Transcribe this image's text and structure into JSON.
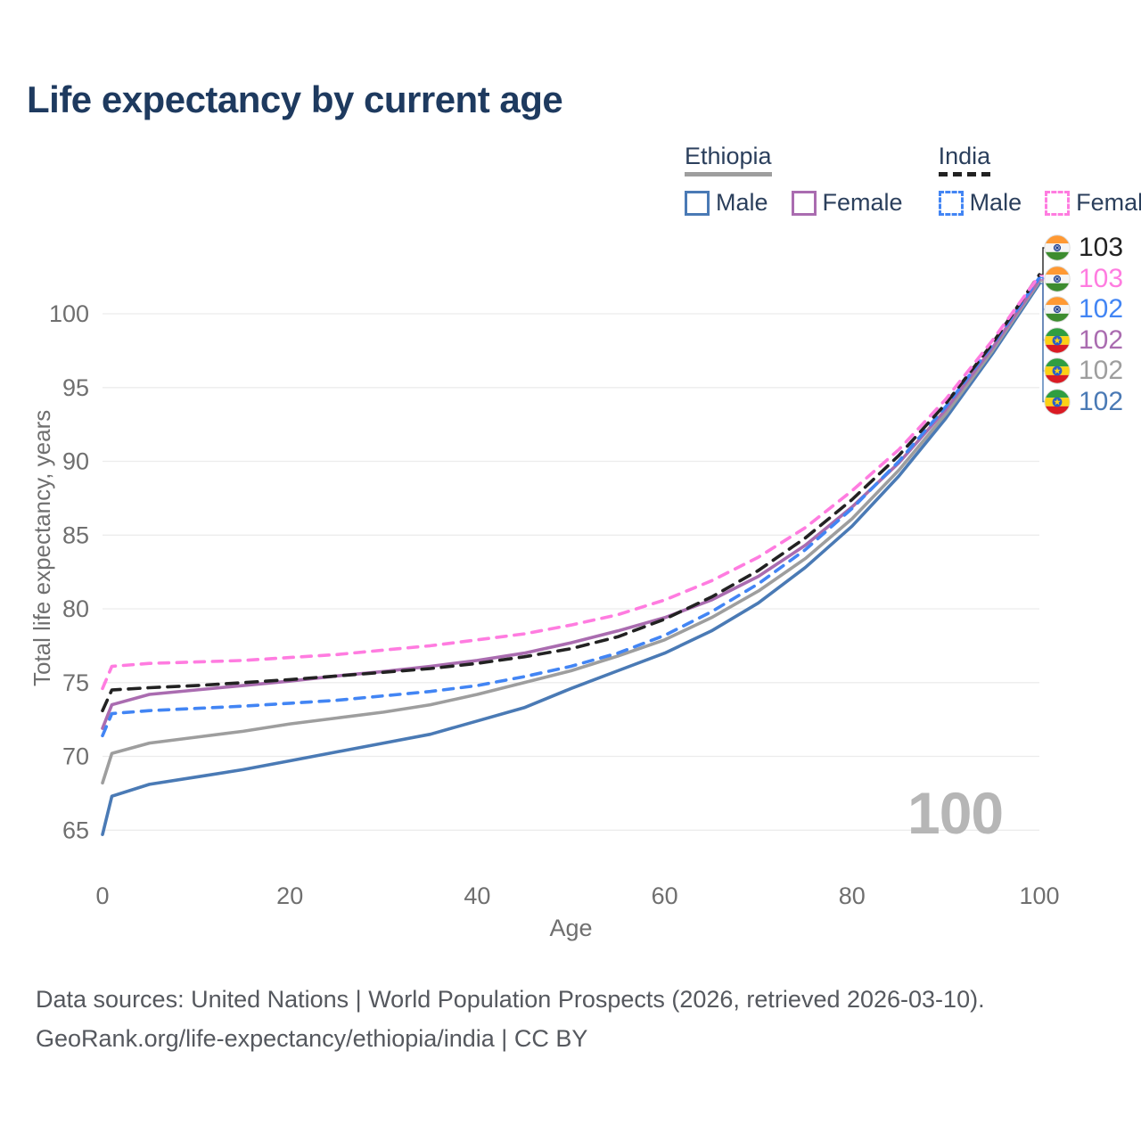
{
  "chart_data": {
    "type": "line",
    "title": "Life expectancy by current age",
    "xlabel": "Age",
    "ylabel": "Total life expectancy, years",
    "watermark": "100",
    "xlim": [
      0,
      100
    ],
    "ylim": [
      65,
      103
    ],
    "xticks": [
      0,
      20,
      40,
      60,
      80,
      100
    ],
    "yticks": [
      65,
      70,
      75,
      80,
      85,
      90,
      95,
      100
    ],
    "grid": "horizontal",
    "x": [
      0,
      1,
      5,
      10,
      15,
      20,
      25,
      30,
      35,
      40,
      45,
      50,
      55,
      60,
      65,
      70,
      75,
      80,
      85,
      90,
      95,
      100
    ],
    "series": [
      {
        "id": "ethiopia-male",
        "country": "Ethiopia",
        "name": "Ethiopia Male",
        "color": "#4a7ab5",
        "linestyle": "solid",
        "values": [
          64.7,
          67.3,
          68.1,
          68.6,
          69.1,
          69.7,
          70.3,
          70.9,
          71.5,
          72.4,
          73.3,
          74.6,
          75.8,
          77.0,
          78.5,
          80.4,
          82.8,
          85.6,
          89.0,
          92.9,
          97.3,
          102.05
        ]
      },
      {
        "id": "ethiopia-total",
        "country": "Ethiopia",
        "name": "Ethiopia Total",
        "color": "#9e9e9e",
        "linestyle": "solid",
        "values": [
          68.2,
          70.2,
          70.9,
          71.3,
          71.7,
          72.2,
          72.6,
          73.0,
          73.5,
          74.2,
          75.0,
          75.8,
          76.8,
          77.9,
          79.4,
          81.2,
          83.4,
          86.1,
          89.4,
          93.2,
          97.5,
          102.2
        ]
      },
      {
        "id": "ethiopia-female",
        "country": "Ethiopia",
        "name": "Ethiopia Female",
        "color": "#aa6cb0",
        "linestyle": "solid",
        "values": [
          71.9,
          73.5,
          74.2,
          74.5,
          74.8,
          75.1,
          75.45,
          75.75,
          76.1,
          76.5,
          77.0,
          77.7,
          78.5,
          79.4,
          80.6,
          82.2,
          84.3,
          86.9,
          89.9,
          93.5,
          97.7,
          102.3
        ]
      },
      {
        "id": "india-male",
        "country": "India",
        "name": "India Male",
        "color": "#4285f4",
        "linestyle": "dashed",
        "values": [
          71.4,
          72.9,
          73.1,
          73.25,
          73.4,
          73.6,
          73.8,
          74.1,
          74.4,
          74.8,
          75.4,
          76.1,
          77.0,
          78.2,
          79.8,
          81.7,
          84.0,
          86.8,
          90.0,
          93.7,
          97.9,
          102.45
        ]
      },
      {
        "id": "india-total",
        "country": "India",
        "name": "India Total",
        "color": "#222222",
        "linestyle": "dashed",
        "values": [
          73.1,
          74.5,
          74.65,
          74.8,
          75.0,
          75.2,
          75.45,
          75.7,
          75.95,
          76.3,
          76.75,
          77.3,
          78.1,
          79.3,
          80.8,
          82.6,
          84.8,
          87.4,
          90.4,
          93.9,
          98.0,
          102.65
        ]
      },
      {
        "id": "india-female",
        "country": "India",
        "name": "India Female",
        "color": "#ff7ce0",
        "linestyle": "dashed",
        "values": [
          74.6,
          76.1,
          76.3,
          76.4,
          76.5,
          76.7,
          76.9,
          77.2,
          77.5,
          77.9,
          78.3,
          78.9,
          79.6,
          80.6,
          81.9,
          83.5,
          85.5,
          88.0,
          90.8,
          94.2,
          98.2,
          102.6
        ]
      }
    ],
    "end_labels": [
      {
        "flag": "india",
        "value": "103",
        "color": "#222222",
        "series": "india-total"
      },
      {
        "flag": "india",
        "value": "103",
        "color": "#ff7ce0",
        "series": "india-female"
      },
      {
        "flag": "india",
        "value": "102",
        "color": "#4285f4",
        "series": "india-male"
      },
      {
        "flag": "ethiopia",
        "value": "102",
        "color": "#aa6cb0",
        "series": "ethiopia-female"
      },
      {
        "flag": "ethiopia",
        "value": "102",
        "color": "#9e9e9e",
        "series": "ethiopia-total"
      },
      {
        "flag": "ethiopia",
        "value": "102",
        "color": "#4a7ab5",
        "series": "ethiopia-male"
      }
    ],
    "colors": {
      "grid": "#ececec",
      "tick_text": "#6f6f6f",
      "title_text": "#1e3a5f",
      "watermark_text": "#b6b6b6"
    }
  },
  "legend": {
    "groups": [
      {
        "name": "Ethiopia",
        "line_style": "solid",
        "line_color": "#9e9e9e",
        "items": [
          {
            "label": "Male",
            "color": "#4a7ab5",
            "box_style": "solid"
          },
          {
            "label": "Female",
            "color": "#aa6cb0",
            "box_style": "solid"
          }
        ]
      },
      {
        "name": "India",
        "line_style": "dashed",
        "line_color": "#222222",
        "items": [
          {
            "label": "Male",
            "color": "#4285f4",
            "box_style": "dashed"
          },
          {
            "label": "Female",
            "color": "#ff7ce0",
            "box_style": "dashed"
          }
        ]
      }
    ]
  },
  "footer": {
    "line1": "Data sources: United Nations | World Population Prospects (2026, retrieved 2026-03-10).",
    "line2": "GeoRank.org/life-expectancy/ethiopia/india | CC BY"
  }
}
